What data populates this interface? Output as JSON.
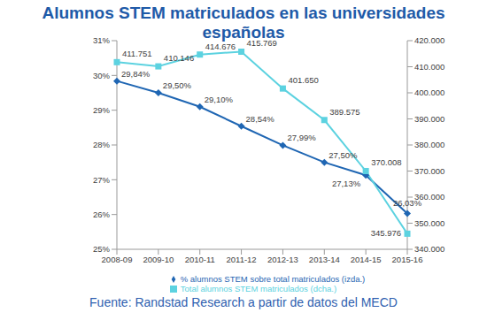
{
  "chart_data": {
    "type": "line",
    "title": "Alumnos STEM matriculados en las universidades españolas",
    "source": "Fuente: Randstad Research a partir de datos del MECD",
    "categories": [
      "2008-09",
      "2009-10",
      "2010-11",
      "2011-12",
      "2012-13",
      "2013-14",
      "2014-15",
      "2015-16"
    ],
    "series": [
      {
        "name": "% alumnos STEM sobre total matriculados (izda.)",
        "color": "#1f66b3",
        "marker": "diamond",
        "values": [
          29.84,
          29.5,
          29.1,
          28.54,
          27.99,
          27.5,
          27.13,
          26.03
        ],
        "value_labels": [
          "29,84%",
          "29,50%",
          "29,10%",
          "28,54%",
          "27,99%",
          "27,50%",
          "27,13%",
          "26,03%"
        ]
      },
      {
        "name": "Total alumnos STEM matriculados (dcha.)",
        "color": "#5cd2e0",
        "marker": "square",
        "axis": "y2",
        "values": [
          411751,
          410146,
          414676,
          415769,
          401650,
          389575,
          370008,
          345976
        ],
        "value_labels": [
          "411.751",
          "410.146",
          "414.676",
          "415.769",
          "401.650",
          "389.575",
          "370.008",
          "345.976"
        ]
      }
    ],
    "ylim": [
      25,
      31
    ],
    "yticks": [
      {
        "value": 25,
        "label": "25%"
      },
      {
        "value": 26,
        "label": "26%"
      },
      {
        "value": 27,
        "label": "27%"
      },
      {
        "value": 28,
        "label": "28%"
      },
      {
        "value": 29,
        "label": "29%"
      },
      {
        "value": 30,
        "label": "30%"
      },
      {
        "value": 31,
        "label": "31%"
      }
    ],
    "y2lim": [
      340000,
      420000
    ],
    "y2ticks": [
      {
        "value": 340000,
        "label": "340.000"
      },
      {
        "value": 350000,
        "label": "350.000"
      },
      {
        "value": 360000,
        "label": "360.000"
      },
      {
        "value": 370000,
        "label": "370.000"
      },
      {
        "value": 380000,
        "label": "380.000"
      },
      {
        "value": 390000,
        "label": "390.000"
      },
      {
        "value": 400000,
        "label": "400.000"
      },
      {
        "value": 410000,
        "label": "410.000"
      },
      {
        "value": 420000,
        "label": "420.000"
      }
    ],
    "grid": false,
    "legend": "bottom",
    "data_labels": true
  }
}
